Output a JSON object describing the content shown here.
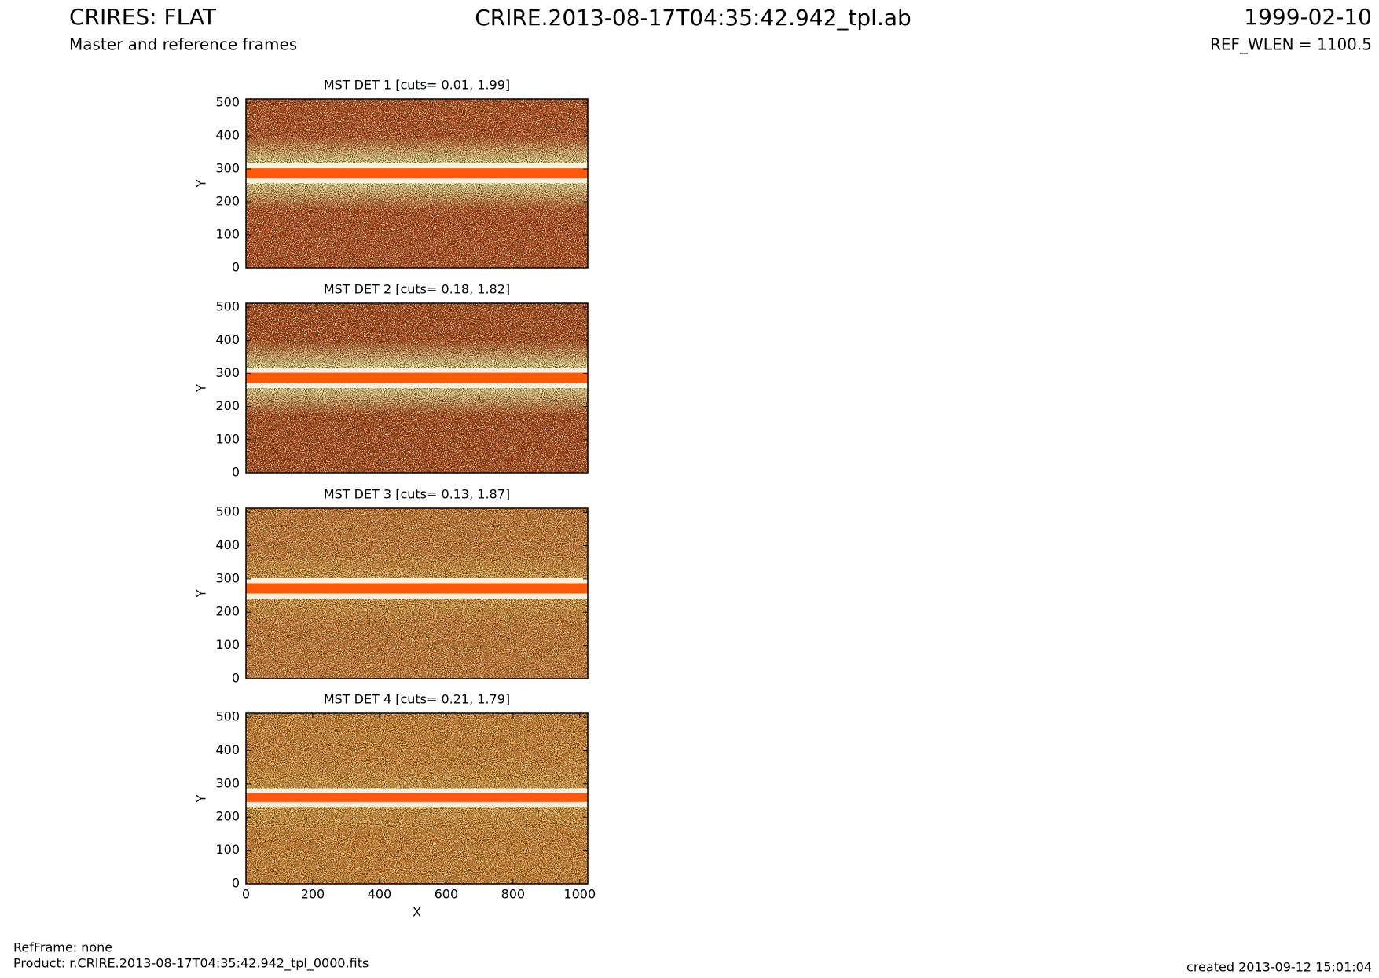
{
  "header": {
    "title": "CRIRES: FLAT",
    "subtitle": "Master and reference frames",
    "file": "CRIRE.2013-08-17T04:35:42.942_tpl.ab",
    "date": "1999-02-10",
    "ref_wlen": "REF_WLEN = 1100.5"
  },
  "footer": {
    "refframe": "RefFrame: none",
    "product": "Product: r.CRIRE.2013-08-17T04:35:42.942_tpl_0000.fits",
    "created": "created 2013-09-12 15:01:04"
  },
  "chart_data": [
    {
      "type": "image",
      "title": "MST DET 1 [cuts= 0.01, 1.99]",
      "y_label": "Y",
      "xlim": [
        0,
        1024
      ],
      "ylim": [
        0,
        512
      ],
      "yticks": [
        0,
        100,
        200,
        300,
        400,
        500
      ]
    },
    {
      "type": "image",
      "title": "MST DET 2 [cuts= 0.18, 1.82]",
      "y_label": "Y",
      "xlim": [
        0,
        1024
      ],
      "ylim": [
        0,
        512
      ],
      "yticks": [
        0,
        100,
        200,
        300,
        400,
        500
      ]
    },
    {
      "type": "image",
      "title": "MST DET 3 [cuts= 0.13, 1.87]",
      "y_label": "Y",
      "xlim": [
        0,
        1024
      ],
      "ylim": [
        0,
        512
      ],
      "yticks": [
        0,
        100,
        200,
        300,
        400,
        500
      ]
    },
    {
      "type": "image",
      "title": "MST DET 4 [cuts= 0.21, 1.79]",
      "y_label": "Y",
      "x_label": "X",
      "xlim": [
        0,
        1024
      ],
      "ylim": [
        0,
        512
      ],
      "yticks": [
        0,
        100,
        200,
        300,
        400,
        500
      ],
      "xticks": [
        0,
        200,
        400,
        600,
        800,
        1000
      ]
    }
  ]
}
